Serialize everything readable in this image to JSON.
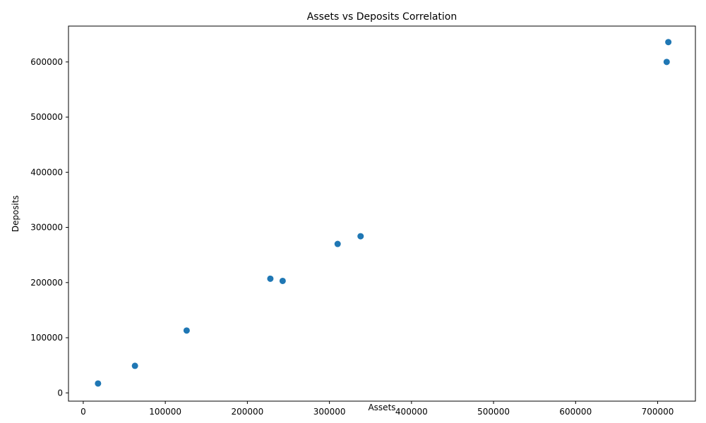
{
  "chart_data": {
    "type": "scatter",
    "title": "Assets vs Deposits Correlation",
    "xlabel": "Assets",
    "ylabel": "Deposits",
    "xlim": [
      -18000,
      746000
    ],
    "ylim": [
      -15000,
      665000
    ],
    "xticks": [
      0,
      100000,
      200000,
      300000,
      400000,
      500000,
      600000,
      700000
    ],
    "yticks": [
      0,
      100000,
      200000,
      300000,
      400000,
      500000,
      600000
    ],
    "grid": false,
    "color": "#1f77b4",
    "points": [
      {
        "x": 18000,
        "y": 17000
      },
      {
        "x": 63000,
        "y": 49000
      },
      {
        "x": 126000,
        "y": 113000
      },
      {
        "x": 228000,
        "y": 207000
      },
      {
        "x": 243000,
        "y": 203000
      },
      {
        "x": 310000,
        "y": 270000
      },
      {
        "x": 338000,
        "y": 284000
      },
      {
        "x": 711000,
        "y": 600000
      },
      {
        "x": 713000,
        "y": 636000
      }
    ]
  }
}
